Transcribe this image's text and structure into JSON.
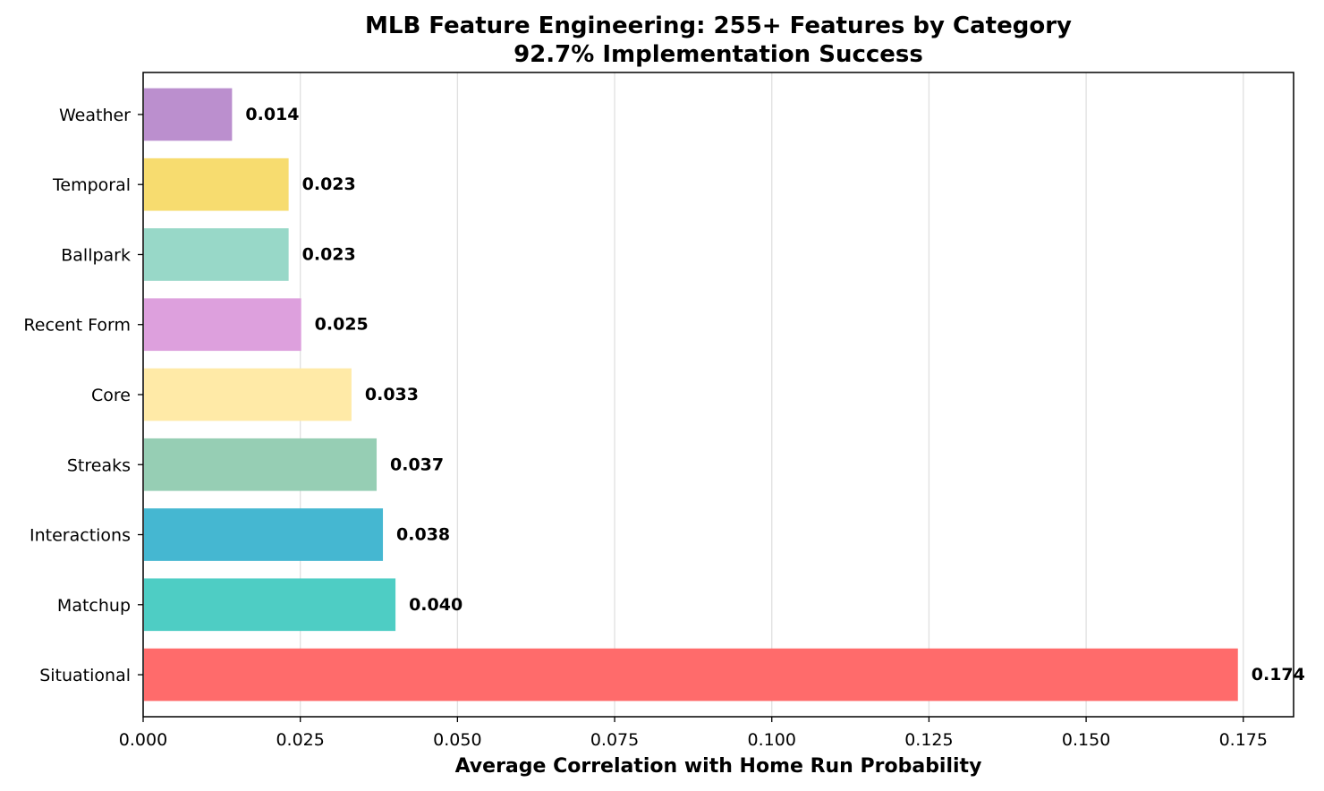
{
  "chart_data": {
    "type": "bar",
    "orientation": "horizontal",
    "title": "MLB Feature Engineering: 255+ Features by Category",
    "subtitle": "92.7% Implementation Success",
    "xlabel": "Average Correlation with Home Run Probability",
    "ylabel": "",
    "xlim": [
      0,
      0.183
    ],
    "xticks": [
      0.0,
      0.025,
      0.05,
      0.075,
      0.1,
      0.125,
      0.15,
      0.175
    ],
    "xtick_labels": [
      "0.000",
      "0.025",
      "0.050",
      "0.075",
      "0.100",
      "0.125",
      "0.150",
      "0.175"
    ],
    "grid": "vertical",
    "categories": [
      "Situational",
      "Matchup",
      "Interactions",
      "Streaks",
      "Core",
      "Recent Form",
      "Ballpark",
      "Temporal",
      "Weather"
    ],
    "values": [
      0.174,
      0.04,
      0.038,
      0.037,
      0.033,
      0.025,
      0.023,
      0.023,
      0.014
    ],
    "value_labels": [
      "0.174",
      "0.040",
      "0.038",
      "0.037",
      "0.033",
      "0.025",
      "0.023",
      "0.023",
      "0.014"
    ],
    "colors": [
      "#ff6b6b",
      "#4ecdc4",
      "#45b7d1",
      "#96ceb4",
      "#ffeaa7",
      "#dda0dd",
      "#98d8c8",
      "#f7dc6f",
      "#bb8fce"
    ]
  }
}
